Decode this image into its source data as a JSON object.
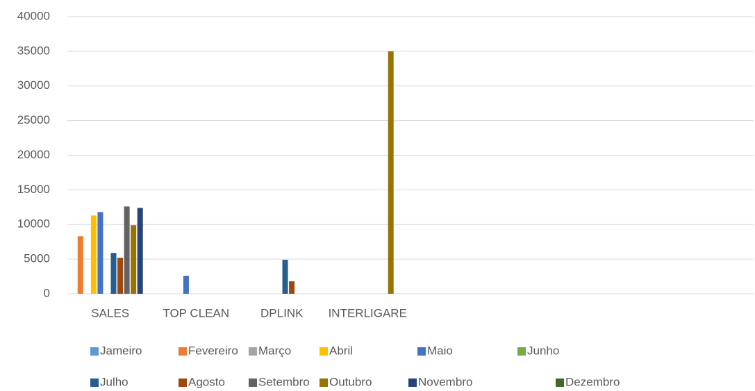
{
  "chart_data": {
    "type": "bar",
    "categories": [
      "SALES",
      "TOP CLEAN",
      "DPLINK",
      "INTERLIGARE",
      null,
      null,
      null,
      null
    ],
    "series": [
      {
        "name": "Jameiro",
        "color": "#5b9bd5",
        "values": [
          null,
          null,
          null,
          null,
          null,
          null,
          null,
          null
        ]
      },
      {
        "name": "Fevereiro",
        "color": "#ed7d31",
        "values": [
          8300,
          null,
          null,
          null,
          null,
          null,
          null,
          null
        ]
      },
      {
        "name": "Março",
        "color": "#a5a5a5",
        "values": [
          null,
          null,
          null,
          null,
          null,
          null,
          null,
          null
        ]
      },
      {
        "name": "Abril",
        "color": "#ffc000",
        "values": [
          11300,
          null,
          null,
          null,
          null,
          null,
          null,
          null
        ]
      },
      {
        "name": "Maio",
        "color": "#4472c4",
        "values": [
          11800,
          2600,
          null,
          null,
          null,
          null,
          null,
          null
        ]
      },
      {
        "name": "Junho",
        "color": "#70ad47",
        "values": [
          null,
          null,
          null,
          null,
          null,
          null,
          null,
          null
        ]
      },
      {
        "name": "Julho",
        "color": "#255e91",
        "values": [
          5900,
          null,
          4900,
          null,
          null,
          null,
          null,
          null
        ]
      },
      {
        "name": "Agosto",
        "color": "#9e480e",
        "values": [
          5200,
          null,
          1800,
          null,
          null,
          null,
          null,
          null
        ]
      },
      {
        "name": "Setembro",
        "color": "#636363",
        "values": [
          12600,
          null,
          null,
          null,
          null,
          null,
          null,
          null
        ]
      },
      {
        "name": "Outubro",
        "color": "#997300",
        "values": [
          9900,
          null,
          null,
          35000,
          null,
          null,
          null,
          null
        ]
      },
      {
        "name": "Novembro",
        "color": "#264478",
        "values": [
          12400,
          null,
          null,
          null,
          null,
          null,
          null,
          null
        ]
      },
      {
        "name": "Dezembro",
        "color": "#43682b",
        "values": [
          null,
          null,
          null,
          null,
          null,
          null,
          null,
          null
        ]
      }
    ],
    "ylim": [
      0,
      40000
    ],
    "yticks": [
      0,
      5000,
      10000,
      15000,
      20000,
      25000,
      30000,
      35000,
      40000
    ],
    "grid": true,
    "legend": "bottom"
  }
}
